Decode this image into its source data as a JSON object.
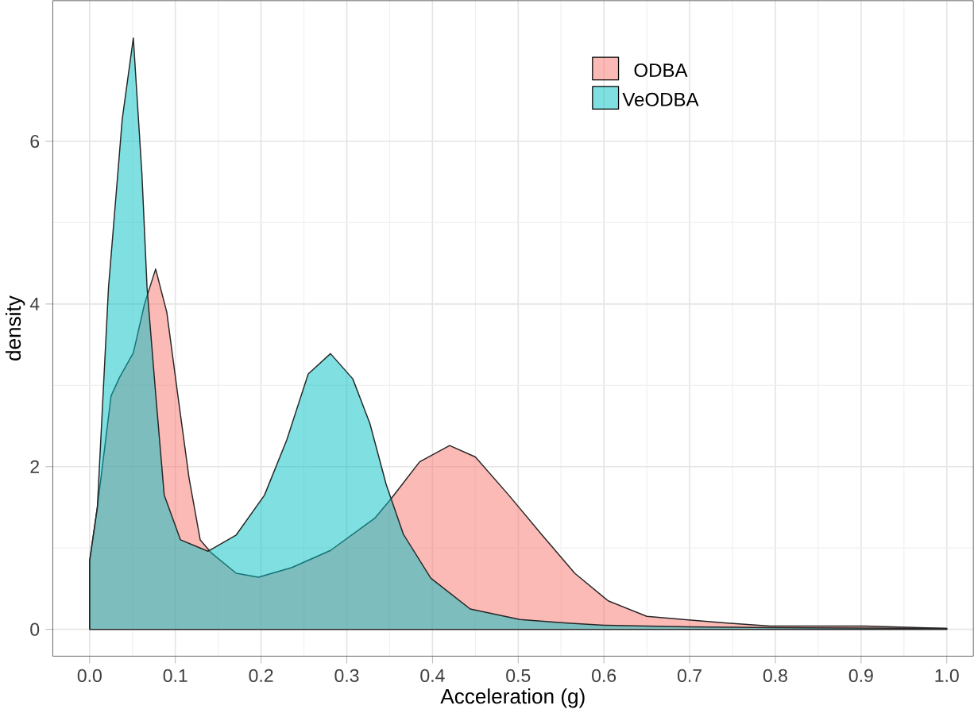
{
  "chart_data": {
    "type": "area",
    "xlabel": "Acceleration (g)",
    "ylabel": "density",
    "xlim": [
      -0.043,
      1.031
    ],
    "ylim": [
      -0.33,
      7.73
    ],
    "xticks": [
      {
        "value": 0,
        "label": "0.0"
      },
      0.1,
      0.2,
      0.3,
      0.4,
      0.5,
      0.6,
      0.7,
      0.8,
      0.9,
      {
        "value": 1,
        "label": "1.0"
      }
    ],
    "yticks": [
      0,
      2,
      4,
      6
    ],
    "grid": true,
    "legend": "top right",
    "series": [
      {
        "name": "ODBA",
        "color": "#F8766D",
        "x": [
          0,
          0.009,
          0.025,
          0.035,
          0.051,
          0.064,
          0.077,
          0.09,
          0.103,
          0.116,
          0.129,
          0.142,
          0.171,
          0.197,
          0.236,
          0.281,
          0.333,
          0.352,
          0.385,
          0.42,
          0.45,
          0.489,
          0.527,
          0.566,
          0.605,
          0.65,
          0.693,
          0.741,
          0.794,
          0.905,
          1.0
        ],
        "values": [
          0.84,
          1.5,
          2.87,
          3.1,
          3.4,
          4.0,
          4.43,
          3.9,
          2.87,
          1.86,
          1.1,
          0.94,
          0.69,
          0.64,
          0.76,
          0.97,
          1.37,
          1.61,
          2.06,
          2.26,
          2.12,
          1.65,
          1.17,
          0.69,
          0.35,
          0.16,
          0.12,
          0.08,
          0.04,
          0.04,
          0.01
        ]
      },
      {
        "name": "VeODBA",
        "color": "#00BFC4",
        "x": [
          0,
          0.009,
          0.022,
          0.038,
          0.051,
          0.061,
          0.067,
          0.077,
          0.087,
          0.106,
          0.138,
          0.171,
          0.204,
          0.23,
          0.255,
          0.281,
          0.307,
          0.327,
          0.346,
          0.366,
          0.398,
          0.444,
          0.502,
          0.554,
          0.6,
          0.7,
          0.8,
          1.0
        ],
        "values": [
          0.84,
          1.5,
          4.2,
          6.27,
          7.27,
          5.6,
          4.2,
          2.9,
          1.65,
          1.1,
          0.96,
          1.16,
          1.65,
          2.33,
          3.14,
          3.39,
          3.08,
          2.53,
          1.78,
          1.17,
          0.63,
          0.25,
          0.12,
          0.08,
          0.05,
          0.03,
          0.02,
          0.01
        ]
      }
    ]
  }
}
